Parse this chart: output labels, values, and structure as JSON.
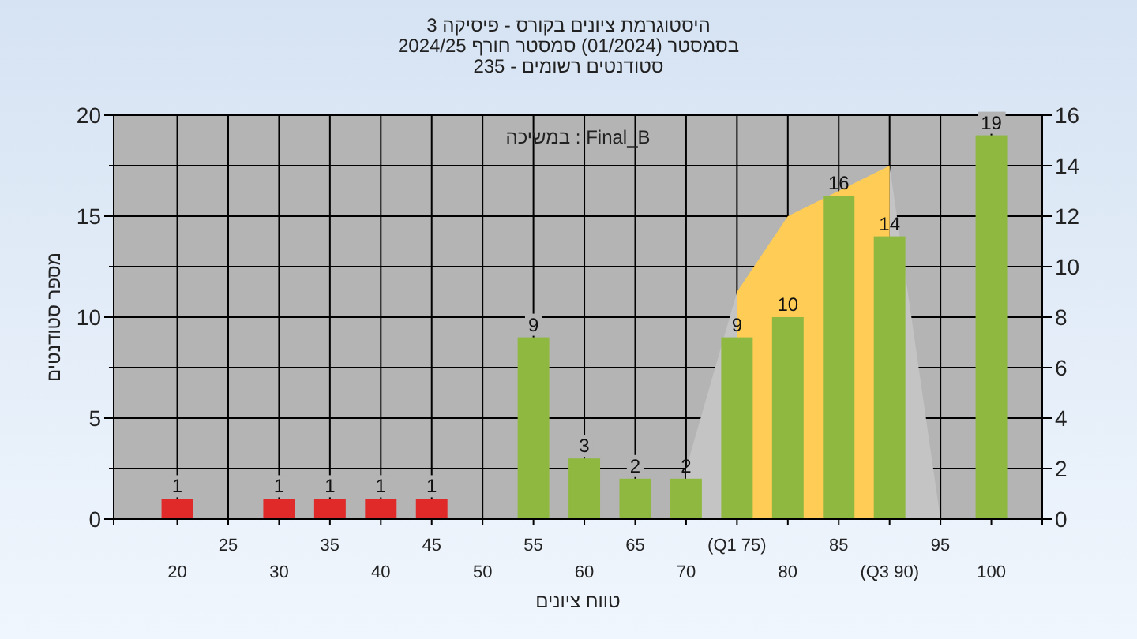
{
  "chart_data": {
    "type": "bar",
    "title": "היסטוגרמת ציונים בקורס - פיסיקה 3",
    "subtitle": "בסמסטר  (01/2024)  סמסטר חורף 2024/25",
    "annotations": [
      "סטודנטים רשומים - 235",
      "במשיכה : Final_B"
    ],
    "xlabel": "טווח ציונים",
    "ylabel": "מספר סטודנטים",
    "categories": [
      "20",
      "25",
      "30",
      "35",
      "40",
      "45",
      "50",
      "55",
      "60",
      "65",
      "70",
      "(Q1 75)",
      "80",
      "85",
      "(Q3 90)",
      "95",
      "100"
    ],
    "series": [
      {
        "type": "area",
        "axis": "y2",
        "color": "#c4c4c4",
        "values": [
          null,
          null,
          null,
          null,
          null,
          null,
          null,
          null,
          null,
          null,
          2,
          9,
          null,
          null,
          14,
          0,
          null
        ]
      },
      {
        "type": "area",
        "axis": "y2",
        "color": "#ffcc55",
        "values": [
          null,
          null,
          null,
          null,
          null,
          null,
          null,
          null,
          null,
          null,
          null,
          9,
          12,
          13,
          14,
          null,
          null
        ]
      },
      {
        "values": [
          1,
          0,
          1,
          1,
          1,
          1,
          0,
          9,
          3,
          2,
          2,
          9,
          10,
          16,
          14,
          0,
          19
        ],
        "colors": [
          "#e02a2a",
          "#8fb840",
          "#e02a2a",
          "#e02a2a",
          "#e02a2a",
          "#e02a2a",
          "#8fb840",
          "#8fb840",
          "#8fb840",
          "#8fb840",
          "#8fb840",
          "#8fb840",
          "#8fb840",
          "#8fb840",
          "#8fb840",
          "#8fb840",
          "#8fb840"
        ],
        "value_labels": [
          "1",
          null,
          "1",
          "1",
          "1",
          "1",
          null,
          "9",
          "3",
          "2",
          "2",
          "9",
          "10",
          "16",
          "14",
          null,
          "19"
        ]
      }
    ],
    "ylim": [
      0,
      20
    ],
    "yticks": [
      0,
      5,
      10,
      15,
      20
    ],
    "y2lim": [
      0,
      16
    ],
    "y2ticks": [
      0,
      2,
      4,
      6,
      8,
      10,
      12,
      14,
      16
    ],
    "grid": true
  }
}
